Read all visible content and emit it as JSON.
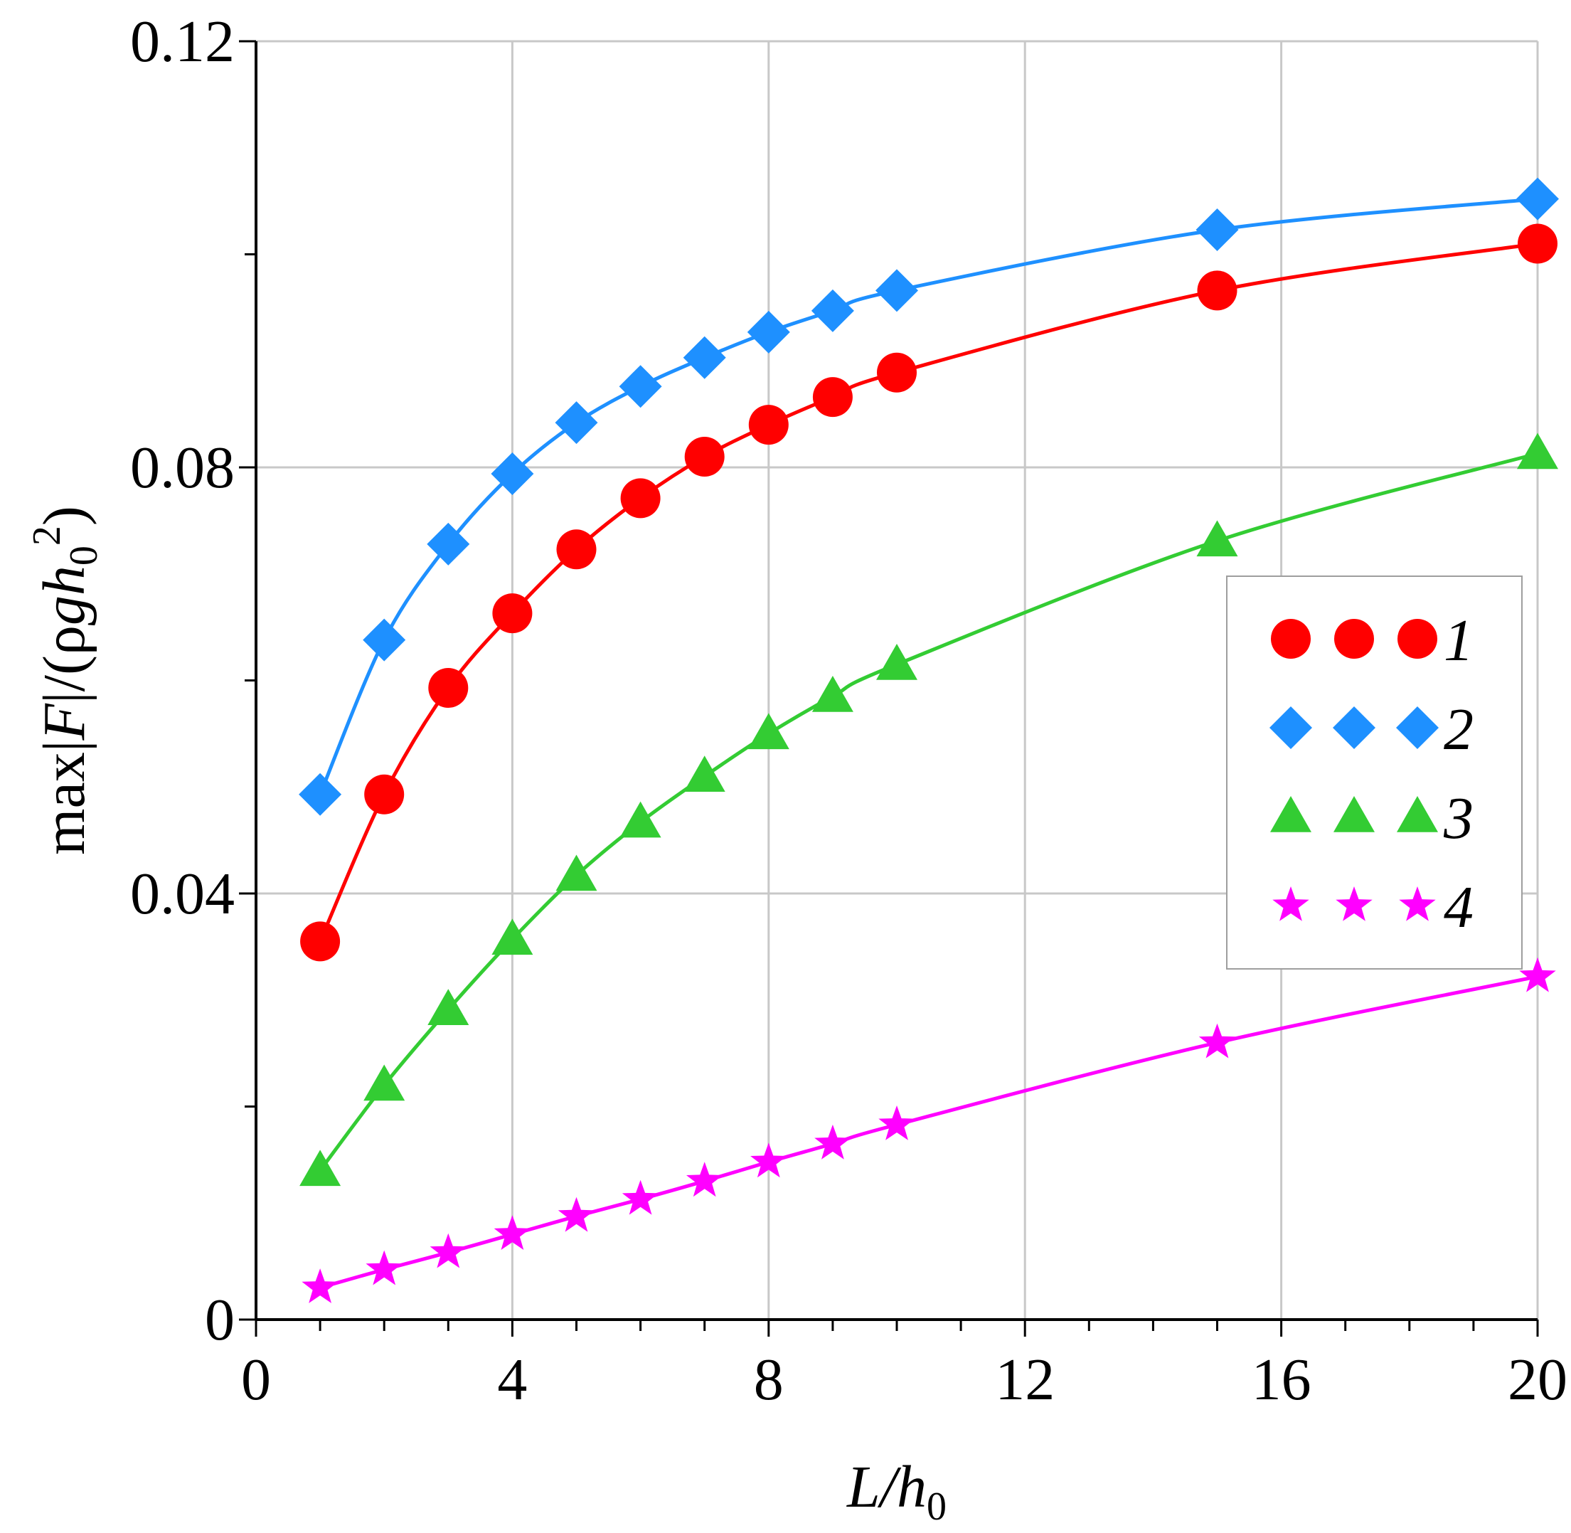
{
  "chart_data": {
    "type": "line",
    "title": "",
    "xlabel": "L/h0",
    "xlabel_parts": {
      "main": "L/h",
      "sub": "0"
    },
    "ylabel": "max|F|/(ρgh0^2)",
    "ylabel_parts": {
      "a": "max|",
      "b": "F",
      "c": "|/(ρ",
      "d": "gh",
      "sub": "0",
      "sup": "2",
      "e": ")"
    },
    "xlim": [
      0,
      20
    ],
    "ylim": [
      0,
      0.12
    ],
    "x_ticks": [
      0,
      4,
      8,
      12,
      16,
      20
    ],
    "x_tick_labels": [
      "0",
      "4",
      "8",
      "12",
      "16",
      "20"
    ],
    "x_minor_ticks": [
      1,
      2,
      3,
      5,
      6,
      7,
      9,
      10,
      11,
      13,
      14,
      15,
      17,
      18,
      19
    ],
    "y_ticks": [
      0,
      0.04,
      0.08,
      0.12
    ],
    "y_tick_labels": [
      "0",
      "0.04",
      "0.08",
      "0.12"
    ],
    "y_minor_ticks": [
      0.02,
      0.06,
      0.1
    ],
    "grid": true,
    "legend_position": "right-middle",
    "x": [
      1,
      2,
      3,
      4,
      5,
      6,
      7,
      8,
      9,
      10,
      15,
      20
    ],
    "series": [
      {
        "name": "1",
        "color": "#ff0000",
        "marker": "circle",
        "values": [
          0.0355,
          0.0493,
          0.0593,
          0.0663,
          0.0723,
          0.0771,
          0.081,
          0.084,
          0.0866,
          0.0889,
          0.0966,
          0.101
        ]
      },
      {
        "name": "2",
        "color": "#1e90ff",
        "marker": "diamond",
        "values": [
          0.0493,
          0.0638,
          0.0728,
          0.0794,
          0.0842,
          0.0876,
          0.0903,
          0.0927,
          0.0947,
          0.0966,
          0.1023,
          0.1052
        ]
      },
      {
        "name": "3",
        "color": "#33cc33",
        "marker": "triangle",
        "values": [
          0.014,
          0.022,
          0.0291,
          0.0357,
          0.0417,
          0.0467,
          0.051,
          0.055,
          0.0585,
          0.0615,
          0.0731,
          0.0813
        ]
      },
      {
        "name": "4",
        "color": "#ff00ff",
        "marker": "star",
        "values": [
          0.003,
          0.0047,
          0.0063,
          0.008,
          0.0097,
          0.0113,
          0.013,
          0.0148,
          0.0165,
          0.0183,
          0.026,
          0.0322
        ]
      }
    ]
  }
}
